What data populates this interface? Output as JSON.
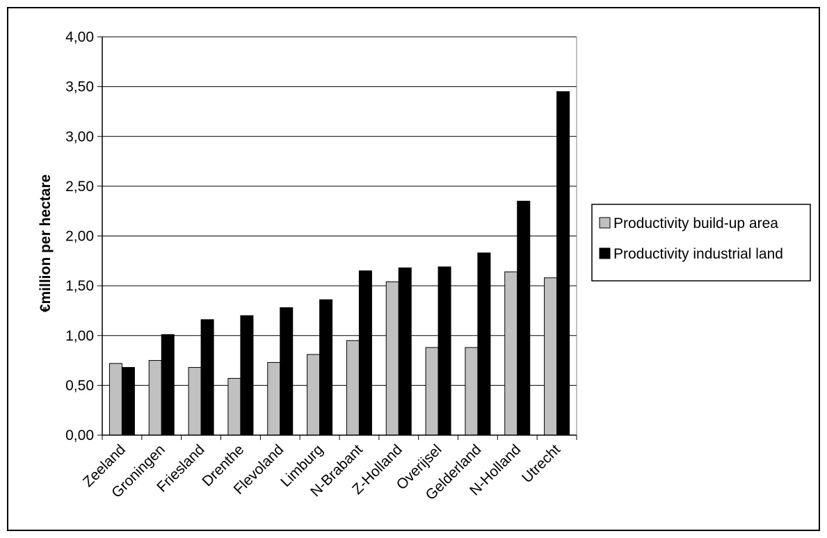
{
  "chart_data": {
    "type": "bar",
    "title": "",
    "xlabel": "",
    "ylabel": "€million per hectare",
    "ylim": [
      0,
      4
    ],
    "yticks": [
      "0,00",
      "0,50",
      "1,00",
      "1,50",
      "2,00",
      "2,50",
      "3,00",
      "3,50",
      "4,00"
    ],
    "grid": true,
    "legend_position": "right",
    "categories": [
      "Zeeland",
      "Groningen",
      "Friesland",
      "Drenthe",
      "Flevoland",
      "Limburg",
      "N-Brabant",
      "Z-Holland",
      "Overijsel",
      "Gelderland",
      "N-Holland",
      "Utrecht"
    ],
    "series": [
      {
        "name": "Productivity build-up area",
        "color": "#c0c0c0",
        "values": [
          0.72,
          0.75,
          0.68,
          0.57,
          0.73,
          0.81,
          0.95,
          1.54,
          0.88,
          0.88,
          1.64,
          1.58
        ]
      },
      {
        "name": "Productivity industrial land",
        "color": "#000000",
        "values": [
          0.68,
          1.01,
          1.16,
          1.2,
          1.28,
          1.36,
          1.65,
          1.68,
          1.69,
          1.83,
          2.35,
          3.45
        ]
      }
    ]
  }
}
